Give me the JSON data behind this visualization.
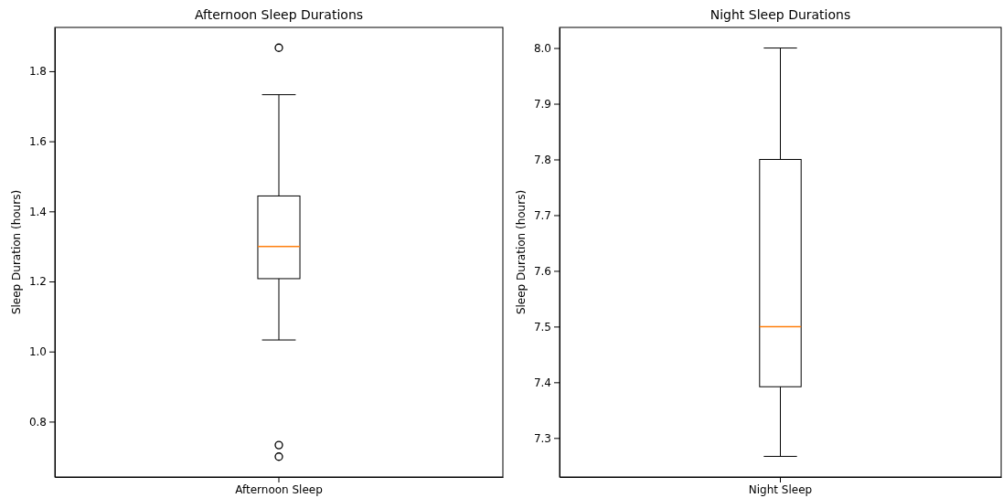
{
  "chart_data": [
    {
      "type": "box",
      "title": "Afternoon Sleep Durations",
      "ylabel": "Sleep Duration (hours)",
      "categories": [
        "Afternoon Sleep"
      ],
      "ylim": [
        0.642,
        1.925
      ],
      "yticks": [
        0.8,
        {
          "value": 1,
          "label": "1.0"
        },
        1.2,
        1.4,
        1.6,
        1.8
      ],
      "grid": false,
      "boxes": [
        {
          "low": 1.033,
          "q1": 1.208,
          "median": 1.3,
          "q3": 1.444,
          "high": 1.733,
          "outliers": [
            1.867,
            0.733,
            0.7
          ]
        }
      ]
    },
    {
      "type": "box",
      "title": "Night Sleep Durations",
      "ylabel": "Sleep Duration (hours)",
      "categories": [
        "Night Sleep"
      ],
      "ylim": [
        7.23,
        8.037
      ],
      "yticks": [
        7.3,
        7.4,
        7.5,
        7.6,
        7.7,
        7.8,
        7.9,
        {
          "value": 8,
          "label": "8.0"
        }
      ],
      "grid": false,
      "boxes": [
        {
          "low": 7.267,
          "q1": 7.392,
          "median": 7.5,
          "q3": 7.8,
          "high": 8.0
        }
      ]
    }
  ]
}
